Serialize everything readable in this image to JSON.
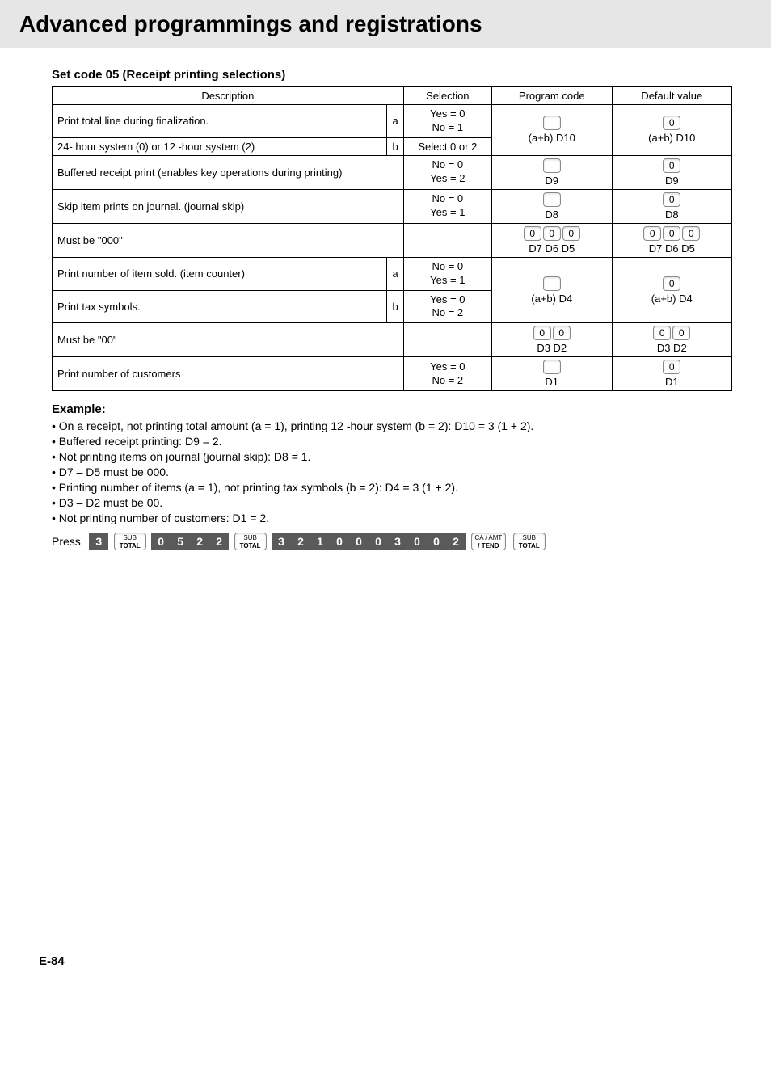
{
  "page_title": "Advanced programmings and registrations",
  "footer": "E-84",
  "subheading": "Set code 05 (Receipt printing selections)",
  "columns": {
    "desc": "Description",
    "sel": "Selection",
    "prog": "Program code",
    "def": "Default value"
  },
  "rows": {
    "r1": {
      "desc": "Print total line during finalization.",
      "ab": "a",
      "sel1": "Yes = 0",
      "sel2": "No = 1"
    },
    "r2": {
      "desc": "24- hour system (0) or 12 -hour system (2)",
      "ab": "b",
      "sel": "Select 0 or 2",
      "prog_cap": "(a+b) D10",
      "def_key": "0",
      "def_cap": "(a+b) D10"
    },
    "r3": {
      "desc": "Buffered receipt print (enables key operations during printing)",
      "sel1": "No = 0",
      "sel2": "Yes = 2",
      "prog_cap": "D9",
      "def_key": "0",
      "def_cap": "D9"
    },
    "r4": {
      "desc": "Skip item prints on journal. (journal skip)",
      "sel1": "No = 0",
      "sel2": "Yes = 1",
      "prog_cap": "D8",
      "def_key": "0",
      "def_cap": "D8"
    },
    "r5": {
      "desc": "Must be \"000\"",
      "prog_k1": "0",
      "prog_k2": "0",
      "prog_k3": "0",
      "prog_cap": "D7 D6 D5",
      "def_k1": "0",
      "def_k2": "0",
      "def_k3": "0",
      "def_cap": "D7 D6 D5"
    },
    "r6": {
      "desc": "Print number of item sold. (item counter)",
      "ab": "a",
      "sel1": "No = 0",
      "sel2": "Yes = 1"
    },
    "r7": {
      "desc": "Print tax symbols.",
      "ab": "b",
      "sel1": "Yes = 0",
      "sel2": "No = 2",
      "prog_cap": "(a+b) D4",
      "def_key": "0",
      "def_cap": "(a+b) D4"
    },
    "r8": {
      "desc": "Must be \"00\"",
      "prog_k1": "0",
      "prog_k2": "0",
      "prog_cap": "D3 D2",
      "def_k1": "0",
      "def_k2": "0",
      "def_cap": "D3 D2"
    },
    "r9": {
      "desc": "Print number of customers",
      "sel1": "Yes = 0",
      "sel2": "No = 2",
      "prog_cap": "D1",
      "def_key": "0",
      "def_cap": "D1"
    }
  },
  "example_head": "Example:",
  "bullets": [
    "On a receipt, not printing total amount (a = 1), printing 12 -hour system (b = 2): D10 = 3 (1 + 2).",
    "Buffered receipt printing: D9 = 2.",
    "Not printing items on journal (journal skip): D8 = 1.",
    "D7 – D5 must be 000.",
    "Printing number of items (a = 1), not printing tax symbols (b = 2): D4 = 3 (1 + 2).",
    "D3 – D2 must be 00.",
    "Not printing number of customers: D1 = 2."
  ],
  "press": {
    "label": "Press",
    "seq1": [
      "3"
    ],
    "sub_label_top": "SUB",
    "sub_label_bot": "TOTAL",
    "seq2": [
      "0",
      "5",
      "2",
      "2"
    ],
    "seq3": [
      "3",
      "2",
      "1",
      "0",
      "0",
      "0",
      "3",
      "0",
      "0",
      "2"
    ],
    "ca_top": "CA / AMT",
    "ca_bot": "/ TEND"
  }
}
